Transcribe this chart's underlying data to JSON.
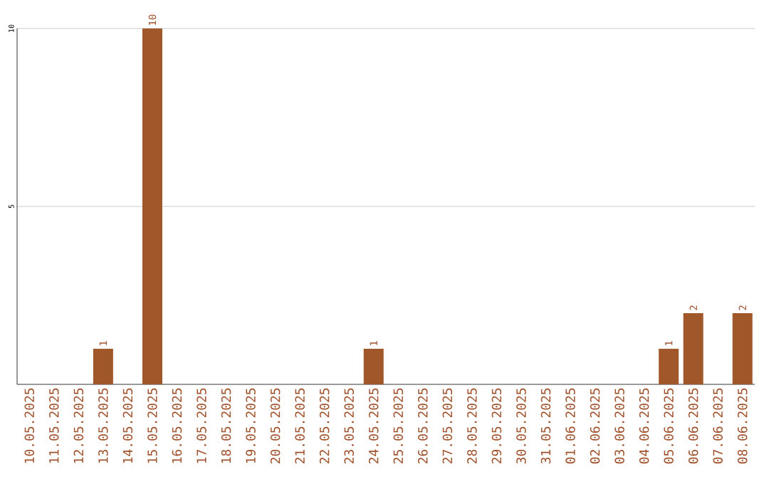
{
  "chart_data": {
    "type": "bar",
    "categories": [
      "10.05.2025",
      "11.05.2025",
      "12.05.2025",
      "13.05.2025",
      "14.05.2025",
      "15.05.2025",
      "16.05.2025",
      "17.05.2025",
      "18.05.2025",
      "19.05.2025",
      "20.05.2025",
      "21.05.2025",
      "22.05.2025",
      "23.05.2025",
      "24.05.2025",
      "25.05.2025",
      "26.05.2025",
      "27.05.2025",
      "28.05.2025",
      "29.05.2025",
      "30.05.2025",
      "31.05.2025",
      "01.06.2025",
      "02.06.2025",
      "03.06.2025",
      "04.06.2025",
      "05.06.2025",
      "06.06.2025",
      "07.06.2025",
      "08.06.2025"
    ],
    "values": [
      0,
      0,
      0,
      1,
      0,
      10,
      0,
      0,
      0,
      0,
      0,
      0,
      0,
      0,
      1,
      0,
      0,
      0,
      0,
      0,
      0,
      0,
      0,
      0,
      0,
      0,
      1,
      2,
      0,
      2
    ],
    "value_labels": [
      null,
      null,
      null,
      "1",
      null,
      "10",
      null,
      null,
      null,
      null,
      null,
      null,
      null,
      null,
      "1",
      null,
      null,
      null,
      null,
      null,
      null,
      null,
      null,
      null,
      null,
      null,
      "1",
      "2",
      null,
      "2"
    ],
    "color": "#a0582a",
    "ylim": [
      0,
      10
    ],
    "yticks": [
      5,
      10
    ],
    "grid": "y"
  }
}
